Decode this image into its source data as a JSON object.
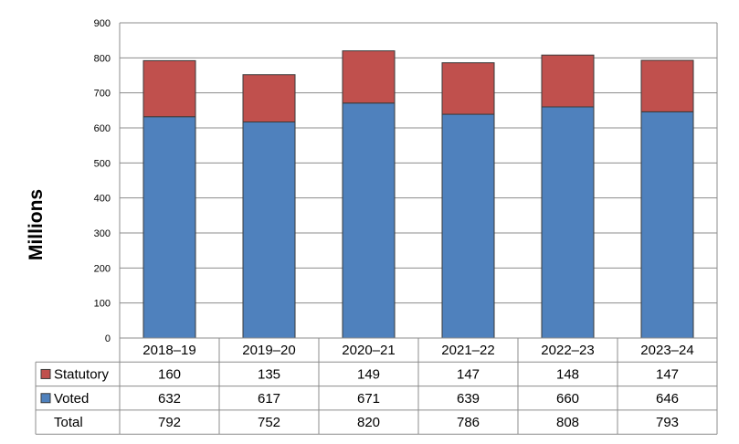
{
  "chart_data": {
    "type": "bar",
    "stacked": true,
    "title": "",
    "xlabel": "",
    "ylabel": "Millions",
    "ylim": [
      0,
      900
    ],
    "yticks": [
      0,
      100,
      200,
      300,
      400,
      500,
      600,
      700,
      800,
      900
    ],
    "grid": true,
    "legend": "in data table",
    "categories": [
      "2018–19",
      "2019–20",
      "2020–21",
      "2021–22",
      "2022–23",
      "2023–24"
    ],
    "series": [
      {
        "name": "Voted",
        "color": "#4f81bd",
        "values": [
          632,
          617,
          671,
          639,
          660,
          646
        ]
      },
      {
        "name": "Statutory",
        "color": "#c0504d",
        "values": [
          160,
          135,
          149,
          147,
          148,
          147
        ]
      }
    ],
    "table": {
      "rows": [
        {
          "label": "Statutory",
          "series": "Statutory",
          "values": [
            "160",
            "135",
            "149",
            "147",
            "148",
            "147"
          ]
        },
        {
          "label": "Voted",
          "series": "Voted",
          "values": [
            "632",
            "617",
            "671",
            "639",
            "660",
            "646"
          ]
        },
        {
          "label": "Total",
          "values": [
            "792",
            "752",
            "820",
            "786",
            "808",
            "793"
          ]
        }
      ]
    }
  }
}
